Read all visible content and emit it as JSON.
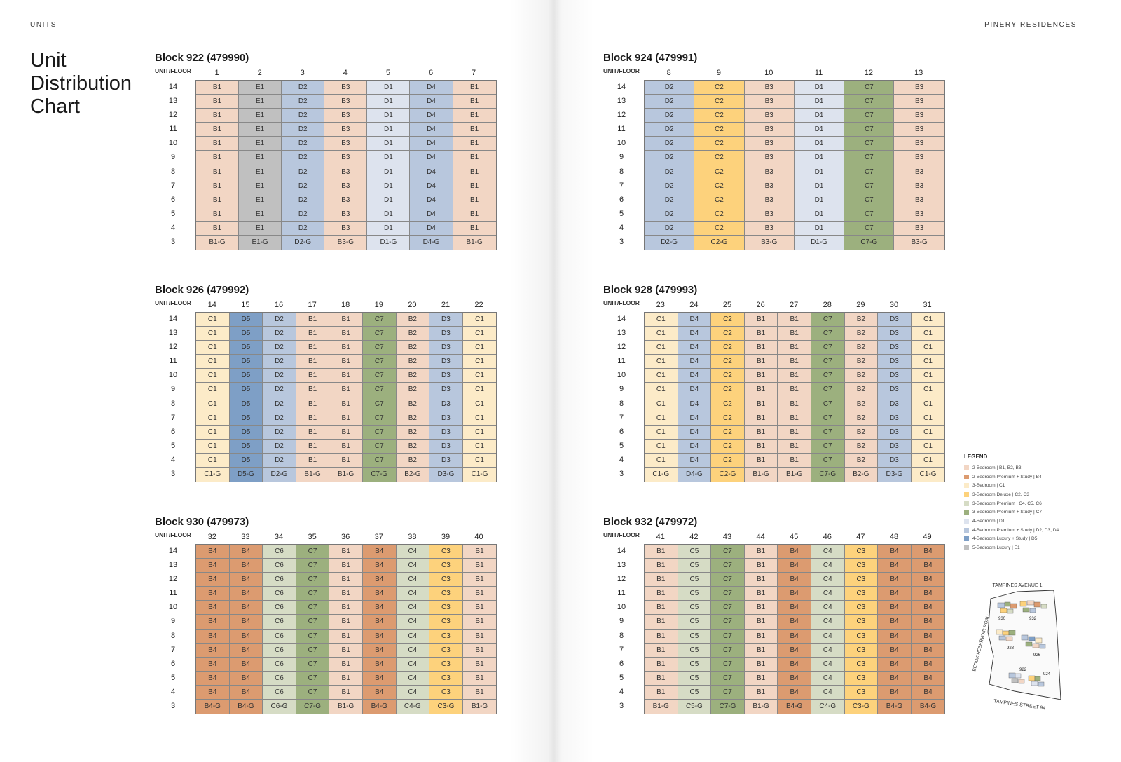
{
  "header": {
    "left": "UNITS",
    "right": "PINERY RESIDENCES"
  },
  "page_title": {
    "line1": "Unit",
    "line2": "Distribution",
    "line3": "Chart"
  },
  "floor_header_label": "UNIT/FLOOR",
  "floors": [
    "14",
    "13",
    "12",
    "11",
    "10",
    "9",
    "8",
    "7",
    "6",
    "5",
    "4",
    "3"
  ],
  "colors": {
    "B": "#f2d6c4",
    "B4": "#dc9b70",
    "C1": "#fcebc8",
    "C2": "#fdd27c",
    "C4": "#d6dcc5",
    "C7": "#9cb07e",
    "D1": "#dde3ee",
    "D2": "#b8c7dd",
    "D5": "#7e9fc6",
    "E1": "#c0c0c0"
  },
  "blocks": [
    {
      "title": "Block 922 (479990)",
      "units": [
        {
          "num": "1",
          "type": "B1",
          "ground": "B1-G",
          "color_key": "B"
        },
        {
          "num": "2",
          "type": "E1",
          "ground": "E1-G",
          "color_key": "E1"
        },
        {
          "num": "3",
          "type": "D2",
          "ground": "D2-G",
          "color_key": "D2"
        },
        {
          "num": "4",
          "type": "B3",
          "ground": "B3-G",
          "color_key": "B"
        },
        {
          "num": "5",
          "type": "D1",
          "ground": "D1-G",
          "color_key": "D1"
        },
        {
          "num": "6",
          "type": "D4",
          "ground": "D4-G",
          "color_key": "D2"
        },
        {
          "num": "7",
          "type": "B1",
          "ground": "B1-G",
          "color_key": "B"
        }
      ]
    },
    {
      "title": "Block 924 (479991)",
      "units": [
        {
          "num": "8",
          "type": "D2",
          "ground": "D2-G",
          "color_key": "D2"
        },
        {
          "num": "9",
          "type": "C2",
          "ground": "C2-G",
          "color_key": "C2"
        },
        {
          "num": "10",
          "type": "B3",
          "ground": "B3-G",
          "color_key": "B"
        },
        {
          "num": "11",
          "type": "D1",
          "ground": "D1-G",
          "color_key": "D1"
        },
        {
          "num": "12",
          "type": "C7",
          "ground": "C7-G",
          "color_key": "C7"
        },
        {
          "num": "13",
          "type": "B3",
          "ground": "B3-G",
          "color_key": "B"
        }
      ]
    },
    {
      "title": "Block 926 (479992)",
      "units": [
        {
          "num": "14",
          "type": "C1",
          "ground": "C1-G",
          "color_key": "C1"
        },
        {
          "num": "15",
          "type": "D5",
          "ground": "D5-G",
          "color_key": "D5"
        },
        {
          "num": "16",
          "type": "D2",
          "ground": "D2-G",
          "color_key": "D2"
        },
        {
          "num": "17",
          "type": "B1",
          "ground": "B1-G",
          "color_key": "B"
        },
        {
          "num": "18",
          "type": "B1",
          "ground": "B1-G",
          "color_key": "B"
        },
        {
          "num": "19",
          "type": "C7",
          "ground": "C7-G",
          "color_key": "C7"
        },
        {
          "num": "20",
          "type": "B2",
          "ground": "B2-G",
          "color_key": "B"
        },
        {
          "num": "21",
          "type": "D3",
          "ground": "D3-G",
          "color_key": "D2"
        },
        {
          "num": "22",
          "type": "C1",
          "ground": "C1-G",
          "color_key": "C1"
        }
      ]
    },
    {
      "title": "Block 928 (479993)",
      "units": [
        {
          "num": "23",
          "type": "C1",
          "ground": "C1-G",
          "color_key": "C1"
        },
        {
          "num": "24",
          "type": "D4",
          "ground": "D4-G",
          "color_key": "D2"
        },
        {
          "num": "25",
          "type": "C2",
          "ground": "C2-G",
          "color_key": "C2"
        },
        {
          "num": "26",
          "type": "B1",
          "ground": "B1-G",
          "color_key": "B"
        },
        {
          "num": "27",
          "type": "B1",
          "ground": "B1-G",
          "color_key": "B"
        },
        {
          "num": "28",
          "type": "C7",
          "ground": "C7-G",
          "color_key": "C7"
        },
        {
          "num": "29",
          "type": "B2",
          "ground": "B2-G",
          "color_key": "B"
        },
        {
          "num": "30",
          "type": "D3",
          "ground": "D3-G",
          "color_key": "D2"
        },
        {
          "num": "31",
          "type": "C1",
          "ground": "C1-G",
          "color_key": "C1"
        }
      ]
    },
    {
      "title": "Block 930 (479973)",
      "units": [
        {
          "num": "32",
          "type": "B4",
          "ground": "B4-G",
          "color_key": "B4"
        },
        {
          "num": "33",
          "type": "B4",
          "ground": "B4-G",
          "color_key": "B4"
        },
        {
          "num": "34",
          "type": "C6",
          "ground": "C6-G",
          "color_key": "C4"
        },
        {
          "num": "35",
          "type": "C7",
          "ground": "C7-G",
          "color_key": "C7"
        },
        {
          "num": "36",
          "type": "B1",
          "ground": "B1-G",
          "color_key": "B"
        },
        {
          "num": "37",
          "type": "B4",
          "ground": "B4-G",
          "color_key": "B4"
        },
        {
          "num": "38",
          "type": "C4",
          "ground": "C4-G",
          "color_key": "C4"
        },
        {
          "num": "39",
          "type": "C3",
          "ground": "C3-G",
          "color_key": "C2"
        },
        {
          "num": "40",
          "type": "B1",
          "ground": "B1-G",
          "color_key": "B"
        }
      ]
    },
    {
      "title": "Block 932 (479972)",
      "units": [
        {
          "num": "41",
          "type": "B1",
          "ground": "B1-G",
          "color_key": "B"
        },
        {
          "num": "42",
          "type": "C5",
          "ground": "C5-G",
          "color_key": "C4"
        },
        {
          "num": "43",
          "type": "C7",
          "ground": "C7-G",
          "color_key": "C7"
        },
        {
          "num": "44",
          "type": "B1",
          "ground": "B1-G",
          "color_key": "B"
        },
        {
          "num": "45",
          "type": "B4",
          "ground": "B4-G",
          "color_key": "B4"
        },
        {
          "num": "46",
          "type": "C4",
          "ground": "C4-G",
          "color_key": "C4"
        },
        {
          "num": "47",
          "type": "C3",
          "ground": "C3-G",
          "color_key": "C2"
        },
        {
          "num": "48",
          "type": "B4",
          "ground": "B4-G",
          "color_key": "B4"
        },
        {
          "num": "49",
          "type": "B4",
          "ground": "B4-G",
          "color_key": "B4"
        }
      ]
    }
  ],
  "legend": {
    "title": "LEGEND",
    "items": [
      {
        "label": "2-Bedroom | B1, B2, B3",
        "color": "#f2d6c4"
      },
      {
        "label": "2-Bedroom Premium + Study | B4",
        "color": "#dc9b70"
      },
      {
        "label": "3-Bedroom | C1",
        "color": "#fcebc8"
      },
      {
        "label": "3-Bedroom Deluxe | C2, C3",
        "color": "#fdd27c"
      },
      {
        "label": "3-Bedroom Premium | C4, C5, C6",
        "color": "#d6dcc5"
      },
      {
        "label": "3-Bedroom Premium + Study | C7",
        "color": "#9cb07e"
      },
      {
        "label": "4-Bedroom | D1",
        "color": "#dde3ee"
      },
      {
        "label": "4-Bedroom Premium + Study | D2, D3, D4",
        "color": "#b8c7dd"
      },
      {
        "label": "4-Bedroom Luxury + Study | D5",
        "color": "#7e9fc6"
      },
      {
        "label": "5-Bedroom Luxury | E1",
        "color": "#c0c0c0"
      }
    ]
  },
  "site_map": {
    "road_top": "TAMPINES AVENUE 1",
    "road_left": "BEDOK RESERVOIR ROAD",
    "road_bottom": "TAMPINES STREET 94",
    "labels": [
      "930",
      "932",
      "928",
      "926",
      "922",
      "924"
    ]
  }
}
